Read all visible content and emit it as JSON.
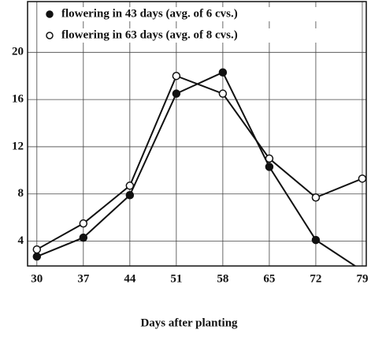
{
  "chart_data": {
    "type": "line",
    "x": [
      30,
      37,
      44,
      51,
      58,
      65,
      72,
      79
    ],
    "series": [
      {
        "name": "flowering in 43 days (avg. of 6 cvs.)",
        "color": "#111111",
        "marker_fill": "#111111",
        "values": [
          2.7,
          4.3,
          7.9,
          16.5,
          18.3,
          10.3,
          4.1,
          1.5
        ]
      },
      {
        "name": "flowering in 63 days (avg. of 8 cvs.)",
        "color": "#111111",
        "marker_fill": "#ffffff",
        "values": [
          3.3,
          5.5,
          8.7,
          18.0,
          16.5,
          11.0,
          7.7,
          9.3
        ]
      }
    ],
    "xlabel": "Days after planting",
    "xlim": [
      28.6,
      79.6
    ],
    "xticks": [
      30,
      37,
      44,
      51,
      58,
      65,
      72,
      79
    ],
    "ylim": [
      1.9,
      24.3
    ],
    "yticks": [
      4,
      8,
      12,
      16,
      20
    ],
    "grid": true,
    "legend": "upper left"
  }
}
